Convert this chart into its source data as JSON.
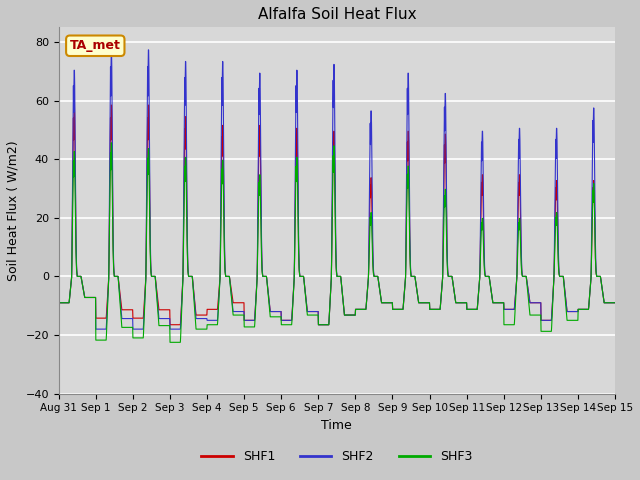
{
  "title": "Alfalfa Soil Heat Flux",
  "ylabel": "Soil Heat Flux ( W/m2)",
  "xlabel": "Time",
  "ylim": [
    -40,
    85
  ],
  "yticks": [
    -40,
    -20,
    0,
    20,
    40,
    60,
    80
  ],
  "fig_bg_color": "#c8c8c8",
  "axes_bg_color": "#d8d8d8",
  "grid_color": "#ffffff",
  "shf1_color": "#cc0000",
  "shf2_color": "#3333cc",
  "shf3_color": "#00aa00",
  "annotation_text": "TA_met",
  "annotation_color": "#aa0000",
  "annotation_bg": "#ffffcc",
  "annotation_border": "#cc8800",
  "n_days": 15,
  "x_tick_labels": [
    "Aug 31",
    "Sep 1",
    "Sep 2",
    "Sep 3",
    "Sep 4",
    "Sep 5",
    "Sep 6",
    "Sep 7",
    "Sep 8",
    "Sep 9",
    "Sep 10",
    "Sep 11",
    "Sep 12",
    "Sep 13",
    "Sep 14",
    "Sep 15"
  ],
  "legend_labels": [
    "SHF1",
    "SHF2",
    "SHF3"
  ],
  "peaks_shf1": [
    59,
    59,
    59,
    55,
    52,
    52,
    51,
    50,
    34,
    50,
    49,
    35,
    35,
    33,
    33
  ],
  "peaks_shf2": [
    71,
    78,
    78,
    74,
    74,
    70,
    71,
    73,
    57,
    70,
    63,
    50,
    51,
    51,
    58
  ],
  "peaks_shf3": [
    43,
    46,
    44,
    41,
    40,
    35,
    41,
    45,
    22,
    38,
    30,
    20,
    20,
    22,
    32
  ],
  "night_shf1": [
    -12,
    -19,
    -19,
    -22,
    -15,
    -20,
    -20,
    -22,
    -15,
    -15,
    -15,
    -15,
    -15,
    -20,
    -15
  ],
  "night_shf2": [
    -12,
    -24,
    -24,
    -24,
    -20,
    -20,
    -20,
    -22,
    -15,
    -15,
    -15,
    -15,
    -15,
    -20,
    -15
  ],
  "night_shf3": [
    -12,
    -29,
    -28,
    -30,
    -22,
    -23,
    -22,
    -22,
    -15,
    -15,
    -15,
    -15,
    -22,
    -25,
    -15
  ]
}
